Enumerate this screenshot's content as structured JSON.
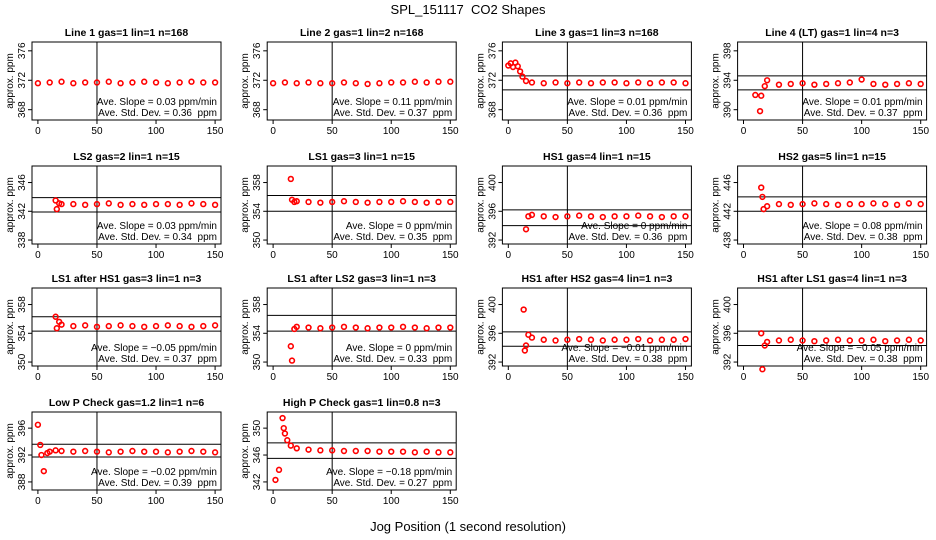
{
  "title": "SPL_151117  CO2 Shapes",
  "xlabel": "Jog Position (1 second resolution)",
  "chart_data": [
    {
      "type": "scatter",
      "title": "Line 1 gas=1 lin=1 n=168",
      "ylabel": "approx. ppm",
      "color": "#ff0000",
      "xlim": [
        -5,
        155
      ],
      "xticks": [
        0,
        50,
        100,
        150
      ],
      "ylim": [
        366.6,
        377.2
      ],
      "yticks": [
        368,
        372,
        376
      ],
      "vline": 50,
      "x": [
        0,
        10,
        20,
        30,
        40,
        50,
        60,
        70,
        80,
        90,
        100,
        110,
        120,
        130,
        140,
        150
      ],
      "y": [
        371.6,
        371.7,
        371.8,
        371.6,
        371.7,
        371.7,
        371.8,
        371.6,
        371.7,
        371.8,
        371.7,
        371.6,
        371.7,
        371.8,
        371.7,
        371.7
      ],
      "annotations": [
        "Ave. Slope = 0.03 ppm/min",
        "Ave. Std. Dev. = 0.36  ppm"
      ]
    },
    {
      "type": "scatter",
      "title": "Line 2 gas=1 lin=2 n=168",
      "ylabel": "approx. ppm",
      "color": "#ff0000",
      "xlim": [
        -5,
        155
      ],
      "xticks": [
        0,
        50,
        100,
        150
      ],
      "ylim": [
        366.6,
        377.2
      ],
      "yticks": [
        368,
        372,
        376
      ],
      "vline": 50,
      "x": [
        0,
        10,
        20,
        30,
        40,
        50,
        60,
        70,
        80,
        90,
        100,
        110,
        120,
        130,
        140,
        150
      ],
      "y": [
        371.6,
        371.7,
        371.6,
        371.7,
        371.6,
        371.6,
        371.7,
        371.6,
        371.5,
        371.6,
        371.7,
        371.7,
        371.8,
        371.7,
        371.8,
        371.8
      ],
      "annotations": [
        "Ave. Slope = 0.11 ppm/min",
        "Ave. Std. Dev. = 0.37  ppm"
      ]
    },
    {
      "type": "scatter",
      "title": "Line 3 gas=1 lin=3 n=168",
      "ylabel": "approx. ppm",
      "color": "#ff0000",
      "xlim": [
        -5,
        155
      ],
      "xticks": [
        0,
        50,
        100,
        150
      ],
      "ylim": [
        366.6,
        377.2
      ],
      "yticks": [
        368,
        372,
        376
      ],
      "vline": 50,
      "hlines": [
        372.6,
        370.7
      ],
      "x": [
        0,
        2,
        4,
        6,
        8,
        10,
        12,
        15,
        20,
        30,
        40,
        50,
        60,
        70,
        80,
        90,
        100,
        110,
        120,
        130,
        140,
        150
      ],
      "y": [
        374.0,
        374.3,
        373.8,
        374.4,
        373.9,
        373.2,
        372.5,
        371.9,
        371.7,
        371.6,
        371.7,
        371.6,
        371.7,
        371.6,
        371.7,
        371.7,
        371.6,
        371.7,
        371.6,
        371.7,
        371.7,
        371.6
      ],
      "annotations": [
        "Ave. Slope = 0.01 ppm/min",
        "Ave. Std. Dev. = 0.36  ppm"
      ]
    },
    {
      "type": "scatter",
      "title": "Line 4 (LT) gas=1 lin=4 n=3",
      "ylabel": "approx. ppm",
      "color": "#ff0000",
      "xlim": [
        -5,
        155
      ],
      "xticks": [
        0,
        50,
        100,
        150
      ],
      "ylim": [
        388.6,
        399.2
      ],
      "yticks": [
        390,
        394,
        398
      ],
      "vline": 50,
      "hlines": [
        394.6,
        392.7
      ],
      "x": [
        10,
        14,
        15,
        18,
        20,
        30,
        40,
        50,
        60,
        70,
        80,
        90,
        100,
        110,
        120,
        130,
        140,
        150
      ],
      "y": [
        392.0,
        389.8,
        391.9,
        393.2,
        394.0,
        393.4,
        393.5,
        393.6,
        393.4,
        393.5,
        393.6,
        393.7,
        394.1,
        393.5,
        393.4,
        393.5,
        393.6,
        393.5
      ],
      "annotations": [
        "Ave. Slope = 0.01 ppm/min",
        "Ave. Std. Dev. = 0.37  ppm"
      ]
    },
    {
      "type": "scatter",
      "title": "LS2 gas=2 lin=1 n=15",
      "ylabel": "approx. ppm",
      "color": "#ff0000",
      "xlim": [
        -5,
        155
      ],
      "xticks": [
        0,
        50,
        100,
        150
      ],
      "ylim": [
        337.45,
        348.3
      ],
      "yticks": [
        338,
        342,
        346
      ],
      "vline": 50,
      "hlines": [
        343.9,
        341.9
      ],
      "x": [
        15,
        16,
        18,
        20,
        30,
        40,
        50,
        60,
        70,
        80,
        90,
        100,
        110,
        120,
        130,
        140,
        150
      ],
      "y": [
        343.5,
        342.3,
        343.1,
        343.0,
        343.0,
        342.9,
        343.0,
        343.1,
        342.9,
        343.0,
        342.9,
        343.0,
        343.0,
        342.9,
        343.1,
        343.0,
        342.9
      ],
      "annotations": [
        "Ave. Slope = 0.03 ppm/min",
        "Ave. Std. Dev. = 0.34  ppm"
      ]
    },
    {
      "type": "scatter",
      "title": "LS1 gas=3 lin=1 n=15",
      "ylabel": "approx. ppm",
      "color": "#ff0000",
      "xlim": [
        -5,
        155
      ],
      "xticks": [
        0,
        50,
        100,
        150
      ],
      "ylim": [
        349.45,
        360.3
      ],
      "yticks": [
        350,
        354,
        358
      ],
      "vline": 50,
      "hlines": [
        356.2,
        354.0
      ],
      "x": [
        15,
        16,
        18,
        20,
        30,
        40,
        50,
        60,
        70,
        80,
        90,
        100,
        110,
        120,
        130,
        140,
        150
      ],
      "y": [
        358.5,
        355.6,
        355.3,
        355.4,
        355.3,
        355.2,
        355.3,
        355.4,
        355.3,
        355.2,
        355.3,
        355.3,
        355.4,
        355.3,
        355.2,
        355.3,
        355.3
      ],
      "annotations": [
        "Ave. Slope = 0 ppm/min",
        "Ave. Std. Dev. = 0.35  ppm"
      ]
    },
    {
      "type": "scatter",
      "title": "HS1 gas=4 lin=1 n=15",
      "ylabel": "approx. ppm",
      "color": "#ff0000",
      "xlim": [
        -5,
        155
      ],
      "xticks": [
        0,
        50,
        100,
        150
      ],
      "ylim": [
        391.45,
        402.3
      ],
      "yticks": [
        392,
        396,
        400
      ],
      "vline": 50,
      "hlines": [
        396.2,
        394.0
      ],
      "x": [
        15,
        17,
        20,
        30,
        40,
        50,
        60,
        70,
        80,
        90,
        100,
        110,
        120,
        130,
        140,
        150
      ],
      "y": [
        393.5,
        395.3,
        395.5,
        395.3,
        395.2,
        395.3,
        395.4,
        395.3,
        395.2,
        395.3,
        395.3,
        395.4,
        395.3,
        395.2,
        395.3,
        395.3
      ],
      "annotations": [
        "Ave. Slope = 0 ppm/min",
        "Ave. Std. Dev. = 0.36  ppm"
      ]
    },
    {
      "type": "scatter",
      "title": "HS2 gas=5 lin=1 n=15",
      "ylabel": "approx. ppm",
      "color": "#ff0000",
      "xlim": [
        -5,
        155
      ],
      "xticks": [
        0,
        50,
        100,
        150
      ],
      "ylim": [
        437.45,
        448.3
      ],
      "yticks": [
        438,
        442,
        446
      ],
      "vline": 50,
      "hlines": [
        444.0,
        442.0
      ],
      "x": [
        15,
        16,
        17,
        20,
        30,
        40,
        50,
        60,
        70,
        80,
        90,
        100,
        110,
        120,
        130,
        140,
        150
      ],
      "y": [
        445.3,
        444.0,
        442.3,
        442.7,
        443.0,
        442.9,
        443.0,
        443.1,
        443.0,
        442.9,
        443.0,
        443.0,
        443.1,
        443.0,
        442.9,
        443.1,
        443.0
      ],
      "annotations": [
        "Ave. Slope = 0.08 ppm/min",
        "Ave. Std. Dev. = 0.38  ppm"
      ]
    },
    {
      "type": "scatter",
      "title": "LS1 after HS1 gas=3 lin=1 n=3",
      "ylabel": "approx. ppm",
      "color": "#ff0000",
      "xlim": [
        -5,
        155
      ],
      "xticks": [
        0,
        50,
        100,
        150
      ],
      "ylim": [
        349.45,
        360.3
      ],
      "yticks": [
        350,
        354,
        358
      ],
      "vline": 50,
      "hlines": [
        356.3,
        354.3
      ],
      "x": [
        15,
        16,
        18,
        20,
        30,
        40,
        50,
        60,
        70,
        80,
        90,
        100,
        110,
        120,
        130,
        140,
        150
      ],
      "y": [
        356.3,
        354.7,
        355.6,
        355.2,
        355.0,
        355.1,
        354.9,
        355.0,
        355.1,
        355.0,
        354.9,
        355.0,
        355.1,
        355.0,
        354.9,
        355.0,
        355.1
      ],
      "annotations": [
        "Ave. Slope = −0.05 ppm/min",
        "Ave. Std. Dev. = 0.37  ppm"
      ]
    },
    {
      "type": "scatter",
      "title": "LS1 after LS2 gas=3 lin=1 n=3",
      "ylabel": "approx. ppm",
      "color": "#ff0000",
      "xlim": [
        -5,
        155
      ],
      "xticks": [
        0,
        50,
        100,
        150
      ],
      "ylim": [
        349.45,
        360.3
      ],
      "yticks": [
        350,
        354,
        358
      ],
      "vline": 50,
      "hlines": [
        356.5,
        354.3
      ],
      "x": [
        15,
        16,
        18,
        20,
        30,
        40,
        50,
        60,
        70,
        80,
        90,
        100,
        110,
        120,
        130,
        140,
        150
      ],
      "y": [
        352.2,
        350.2,
        354.6,
        354.9,
        354.8,
        354.7,
        354.8,
        354.9,
        354.8,
        354.7,
        354.8,
        354.8,
        354.9,
        354.8,
        354.7,
        354.8,
        354.8
      ],
      "annotations": [
        "Ave. Slope = 0 ppm/min",
        "Ave. Std. Dev. = 0.33  ppm"
      ]
    },
    {
      "type": "scatter",
      "title": "HS1 after HS2 gas=4 lin=1 n=3",
      "ylabel": "approx. ppm",
      "color": "#ff0000",
      "xlim": [
        -5,
        155
      ],
      "xticks": [
        0,
        50,
        100,
        150
      ],
      "ylim": [
        391.45,
        402.3
      ],
      "yticks": [
        392,
        396,
        400
      ],
      "vline": 50,
      "hlines": [
        396.2,
        394.2
      ],
      "x": [
        13,
        14,
        15,
        17,
        20,
        30,
        40,
        50,
        60,
        70,
        80,
        90,
        100,
        110,
        120,
        130,
        140,
        150
      ],
      "y": [
        399.3,
        393.6,
        394.3,
        395.8,
        395.4,
        395.1,
        395.0,
        395.1,
        395.2,
        395.1,
        395.0,
        395.1,
        395.1,
        395.2,
        395.0,
        395.1,
        395.1,
        395.2
      ],
      "annotations": [
        "Ave. Slope = −0.01 ppm/min",
        "Ave. Std. Dev. = 0.38  ppm"
      ]
    },
    {
      "type": "scatter",
      "title": "HS1 after LS1 gas=4 lin=1 n=3",
      "ylabel": "approx. ppm",
      "color": "#ff0000",
      "xlim": [
        -5,
        155
      ],
      "xticks": [
        0,
        50,
        100,
        150
      ],
      "ylim": [
        391.45,
        402.3
      ],
      "yticks": [
        392,
        396,
        400
      ],
      "vline": 50,
      "hlines": [
        396.3,
        394.3
      ],
      "x": [
        15,
        16,
        18,
        20,
        30,
        40,
        50,
        60,
        70,
        80,
        90,
        100,
        110,
        120,
        130,
        140,
        150
      ],
      "y": [
        396.0,
        391.0,
        394.3,
        394.8,
        395.0,
        395.1,
        395.0,
        394.9,
        395.0,
        395.1,
        395.0,
        395.0,
        395.1,
        394.9,
        395.0,
        395.1,
        395.0
      ],
      "annotations": [
        "Ave. Slope = −0.05 ppm/min",
        "Ave. Std. Dev. = 0.38  ppm"
      ]
    },
    {
      "type": "scatter",
      "title": "Low P Check gas=1.2 lin=1 n=6",
      "ylabel": "approx. ppm",
      "color": "#ff0000",
      "xlim": [
        -5,
        155
      ],
      "xticks": [
        0,
        50,
        100,
        150
      ],
      "ylim": [
        386.8,
        398.4
      ],
      "yticks": [
        388,
        392,
        396
      ],
      "vline": 50,
      "hlines": [
        393.6,
        391.7
      ],
      "x": [
        0,
        2,
        3,
        5,
        8,
        10,
        15,
        20,
        30,
        40,
        50,
        60,
        70,
        80,
        90,
        100,
        110,
        120,
        130,
        140,
        150
      ],
      "y": [
        396.5,
        393.5,
        392.0,
        389.6,
        392.3,
        392.5,
        392.7,
        392.6,
        392.5,
        392.6,
        392.5,
        392.4,
        392.5,
        392.6,
        392.5,
        392.5,
        392.4,
        392.5,
        392.6,
        392.5,
        392.4
      ],
      "annotations": [
        "Ave. Slope = −0.02 ppm/min",
        "Ave. Std. Dev. = 0.39  ppm"
      ]
    },
    {
      "type": "scatter",
      "title": "High P Check gas=1 lin=0.8 n=3",
      "ylabel": "approx. ppm",
      "color": "#ff0000",
      "xlim": [
        -5,
        155
      ],
      "xticks": [
        0,
        50,
        100,
        150
      ],
      "ylim": [
        340.8,
        352.4
      ],
      "yticks": [
        342,
        346,
        350
      ],
      "vline": 50,
      "hlines": [
        347.8,
        345.5
      ],
      "x": [
        2,
        5,
        8,
        9,
        10,
        12,
        15,
        20,
        30,
        40,
        50,
        60,
        70,
        80,
        90,
        100,
        110,
        120,
        130,
        140,
        150
      ],
      "y": [
        342.3,
        343.8,
        351.5,
        350.0,
        349.2,
        348.2,
        347.4,
        347.0,
        346.8,
        346.7,
        346.7,
        346.6,
        346.6,
        346.6,
        346.5,
        346.5,
        346.5,
        346.4,
        346.5,
        346.4,
        346.4
      ],
      "annotations": [
        "Ave. Slope = −0.18 ppm/min",
        "Ave. Std. Dev. = 0.27  ppm"
      ]
    }
  ]
}
